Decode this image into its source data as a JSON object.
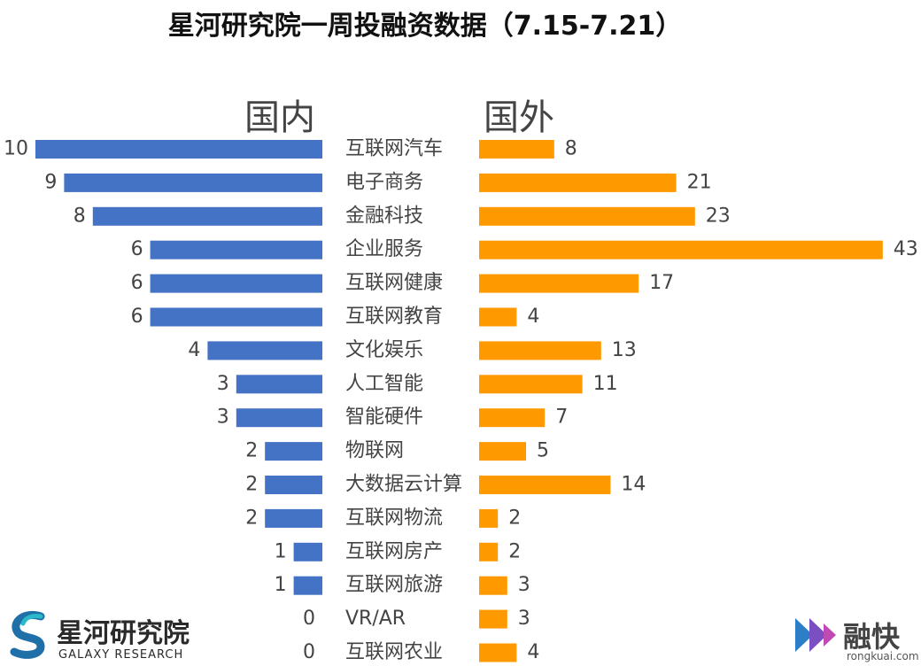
{
  "header": {
    "title": "星河研究院一周投融资数据（7.15-7.21）",
    "left_label": "国内",
    "right_label": "国外"
  },
  "chart_data": {
    "type": "bar",
    "title": "星河研究院一周投融资数据（7.15-7.21）",
    "categories": [
      "互联网汽车",
      "电子商务",
      "金融科技",
      "企业服务",
      "互联网健康",
      "互联网教育",
      "文化娱乐",
      "人工智能",
      "智能硬件",
      "物联网",
      "大数据云计算",
      "互联网物流",
      "互联网房产",
      "互联网旅游",
      "VR/AR",
      "互联网农业"
    ],
    "series": [
      {
        "name": "国内",
        "color": "#4472C4",
        "values": [
          10,
          9,
          8,
          6,
          6,
          6,
          4,
          3,
          3,
          2,
          2,
          2,
          1,
          1,
          0,
          0
        ]
      },
      {
        "name": "国外",
        "color": "#FF9900",
        "values": [
          8,
          21,
          23,
          43,
          17,
          4,
          13,
          11,
          7,
          5,
          14,
          2,
          2,
          3,
          3,
          4
        ]
      }
    ],
    "legend": "top"
  },
  "branding": {
    "left_logo": {
      "name": "星河研究院",
      "sub": "GALAXY RESEARCH"
    },
    "right_logo": {
      "name": "融快",
      "sub": "rongkuai.com"
    }
  }
}
